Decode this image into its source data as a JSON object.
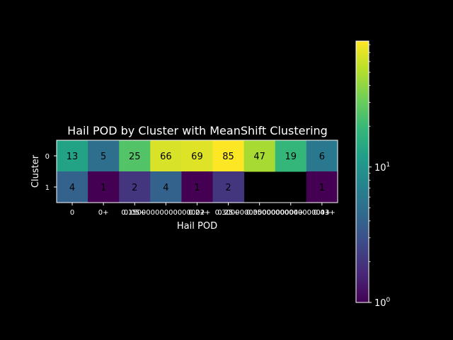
{
  "chart_data": {
    "type": "heatmap",
    "title": "Hail POD by Cluster with MeanShift Clustering",
    "xlabel": "Hail POD",
    "ylabel": "Cluster",
    "x_categories": [
      "0",
      "0+",
      "0.05+",
      "0.15+",
      "0.2+",
      "0.25+",
      "0.3+",
      "0.35+",
      "0.4+"
    ],
    "x_tick_labels": [
      "0",
      "0+",
      "0.05+",
      "0.15000000000000002+",
      "0.2+",
      "0.25+",
      "0.30000000000000004+",
      "0.35000000000000003+",
      "0.4+"
    ],
    "y_categories": [
      "0",
      "1"
    ],
    "values": [
      [
        13,
        5,
        25,
        66,
        69,
        85,
        47,
        19,
        6
      ],
      [
        4,
        1,
        2,
        4,
        1,
        2,
        null,
        null,
        1
      ]
    ],
    "colorbar": {
      "scale": "log",
      "range": [
        1,
        85
      ],
      "colormap": "viridis",
      "tick_labels": [
        "10^0",
        "10^1"
      ]
    },
    "background_color": "#000000",
    "text_color": "#ffffff"
  }
}
